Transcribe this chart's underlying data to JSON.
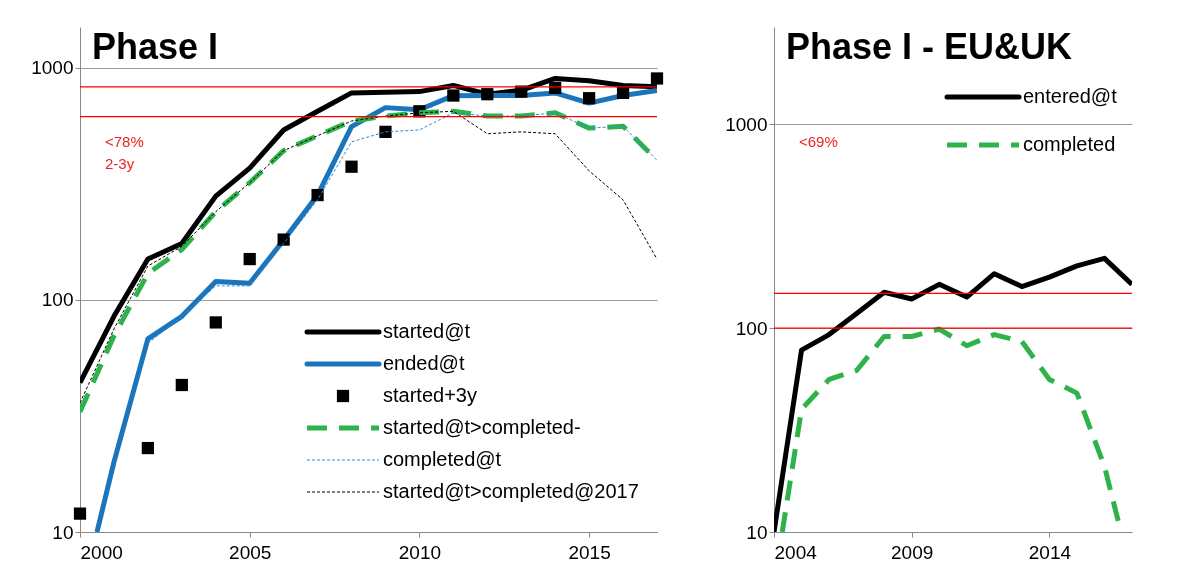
{
  "chart_data": [
    {
      "type": "line",
      "title": "Phase I",
      "log": true,
      "grid": "y",
      "legend": "bottom right",
      "xlim": [
        2000,
        2017
      ],
      "xticks": [
        2000,
        2005,
        2010,
        2015
      ],
      "ylim": [
        10,
        1500
      ],
      "yticks": [
        10,
        100,
        1000
      ],
      "series": [
        {
          "name": "started@t",
          "color": "#000000",
          "line_style": "solid",
          "x": [
            2000,
            2001,
            2002,
            2003,
            2004,
            2005,
            2006,
            2007,
            2008,
            2009,
            2010,
            2011,
            2012,
            2013,
            2014,
            2015,
            2016,
            2017
          ],
          "values": [
            44,
            85,
            150,
            175,
            280,
            370,
            540,
            650,
            780,
            785,
            790,
            840,
            770,
            800,
            900,
            880,
            840,
            830
          ]
        },
        {
          "name": "ended@t",
          "color": "#1a75bc",
          "line_style": "solid",
          "x": [
            2000.5,
            2001,
            2002,
            2003,
            2004,
            2005,
            2006,
            2007,
            2008,
            2009,
            2010,
            2011,
            2012,
            2013,
            2014,
            2015,
            2016,
            2017
          ],
          "values": [
            10,
            20,
            68,
            85,
            120,
            118,
            181,
            283,
            558,
            674,
            660,
            759,
            760,
            760,
            780,
            705,
            760,
            800
          ]
        },
        {
          "name": "started+3y",
          "color": "#000000",
          "type": "scatter",
          "marker": "square",
          "x": [
            2000,
            2002,
            2003,
            2004,
            2005,
            2006,
            2007,
            2008,
            2009,
            2010,
            2011,
            2012,
            2013,
            2014,
            2015,
            2016,
            2017
          ],
          "values": [
            12,
            23,
            43,
            80,
            150,
            182,
            283,
            375,
            530,
            650,
            760,
            770,
            790,
            820,
            740,
            780,
            900
          ]
        },
        {
          "name": "started@t>completed-",
          "color": "#2db34a",
          "line_style": "dashed",
          "x": [
            2000,
            2001,
            2002,
            2003,
            2004,
            2005,
            2006,
            2007,
            2008,
            2009,
            2010,
            2011,
            2012,
            2013,
            2014,
            2015,
            2016,
            2017
          ],
          "values": [
            33,
            70,
            130,
            165,
            240,
            320,
            440,
            510,
            590,
            620,
            640,
            650,
            620,
            620,
            640,
            550,
            560,
            400
          ]
        },
        {
          "name": "completed@t",
          "color": "#2e8bd8",
          "line_style": "dotted",
          "x": [
            2002,
            2003,
            2004,
            2005,
            2006,
            2007,
            2008,
            2009,
            2010,
            2011,
            2012,
            2013,
            2014,
            2015,
            2016,
            2017
          ],
          "values": [
            65,
            85,
            115,
            115,
            175,
            270,
            480,
            530,
            540,
            640,
            620,
            620,
            640,
            550,
            560,
            400
          ]
        },
        {
          "name": "started@t>completed@2017",
          "color": "#000000",
          "line_style": "dotted",
          "x": [
            2000,
            2001,
            2002,
            2003,
            2004,
            2005,
            2006,
            2007,
            2008,
            2009,
            2010,
            2011,
            2012,
            2013,
            2014,
            2015,
            2016,
            2017
          ],
          "values": [
            36,
            75,
            140,
            170,
            240,
            320,
            440,
            510,
            590,
            620,
            640,
            650,
            520,
            530,
            520,
            360,
            270,
            150
          ]
        }
      ],
      "ref_lines": [
        {
          "axis": "y",
          "value": 828,
          "color": "#ff0000"
        },
        {
          "axis": "y",
          "value": 616,
          "color": "#ff0000"
        }
      ],
      "annotations": [
        "<78%",
        "2-3y"
      ]
    },
    {
      "type": "line",
      "title": "Phase I - EU&UK",
      "log": true,
      "grid": "y",
      "legend": "top right",
      "xlim": [
        2004,
        2017
      ],
      "xticks": [
        2004,
        2009,
        2014
      ],
      "ylim": [
        10,
        3000
      ],
      "yticks": [
        10,
        100,
        1000
      ],
      "series": [
        {
          "name": "entered@t",
          "color": "#000000",
          "line_style": "solid",
          "x": [
            2004,
            2005,
            2006,
            2007,
            2008,
            2009,
            2010,
            2011,
            2012,
            2013,
            2014,
            2015,
            2016,
            2017
          ],
          "values": [
            10,
            78,
            93,
            118,
            150,
            139,
            164,
            142,
            185,
            160,
            178,
            202,
            220,
            164
          ]
        },
        {
          "name": "completed",
          "color": "#2db34a",
          "line_style": "dashed",
          "x": [
            2004.3,
            2005,
            2006,
            2007,
            2008,
            2009,
            2010,
            2011,
            2012,
            2013,
            2014,
            2015,
            2016,
            2016.6
          ],
          "values": [
            10,
            40,
            56,
            62,
            91,
            91,
            99,
            82,
            93,
            86,
            56,
            48,
            21,
            10
          ]
        }
      ],
      "ref_lines": [
        {
          "axis": "y",
          "value": 148,
          "color": "#ff0000"
        },
        {
          "axis": "y",
          "value": 100,
          "color": "#ff0000"
        }
      ],
      "annotations": [
        "<69%"
      ]
    }
  ]
}
